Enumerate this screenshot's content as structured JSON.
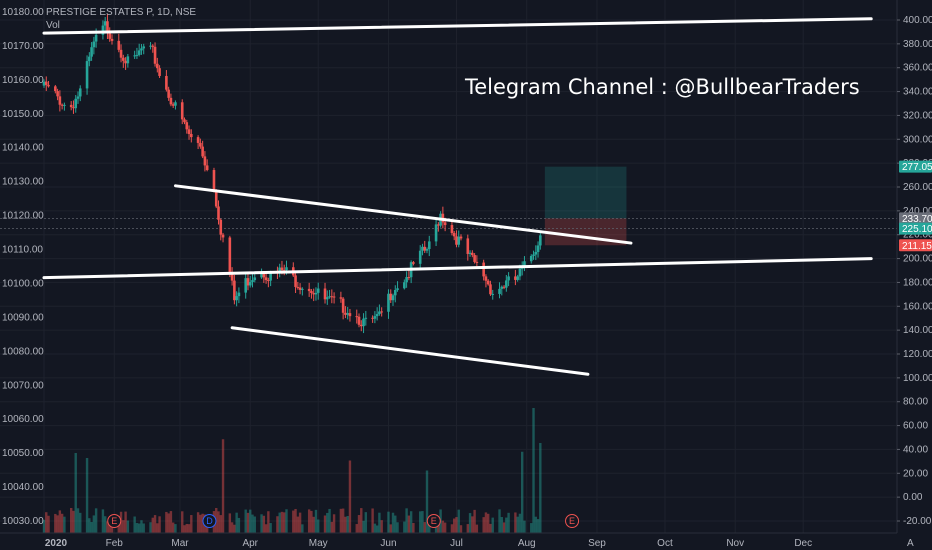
{
  "chart_data": {
    "type": "candlestick",
    "symbol_title": "PRESTIGE ESTATES P, 1D, NSE",
    "volume_label": "Vol",
    "watermark": "Telegram Channel : @BullbearTraders",
    "x_labels": [
      "2020",
      "Feb",
      "Mar",
      "Apr",
      "May",
      "Jun",
      "Jul",
      "Aug",
      "Sep",
      "Oct",
      "Nov",
      "Dec"
    ],
    "left_axis_labels": [
      "10180.00",
      "10170.00",
      "10160.00",
      "10150.00",
      "10140.00",
      "10130.00",
      "10120.00",
      "10110.00",
      "10100.00",
      "10090.00",
      "10080.00",
      "10070.00",
      "10060.00",
      "10050.00",
      "10040.00",
      "10030.00"
    ],
    "right_axis_labels": [
      "400.00",
      "380.00",
      "360.00",
      "340.00",
      "320.00",
      "300.00",
      "280.00",
      "260.00",
      "240.00",
      "220.00",
      "200.00",
      "180.00",
      "160.00",
      "140.00",
      "120.00",
      "100.00",
      "80.00",
      "60.00",
      "40.00",
      "20.00",
      "0.00",
      "-20.00"
    ],
    "price_tags": [
      {
        "label": "277.05",
        "value": 277.05,
        "color": "#26a69a"
      },
      {
        "label": "233.70",
        "value": 233.7,
        "color": "#6b6f7a"
      },
      {
        "label": "225.10",
        "value": 225.1,
        "color": "#26a69a"
      },
      {
        "label": "211.15",
        "value": 211.15,
        "color": "#ef5350"
      }
    ],
    "events": [
      {
        "letter": "E",
        "month": "Feb",
        "color": "#ef5350"
      },
      {
        "letter": "D",
        "month": "Mar",
        "color": "#2962ff"
      },
      {
        "letter": "E",
        "month": "Jun",
        "color": "#ef5350"
      },
      {
        "letter": "E",
        "month": "Aug",
        "color": "#ef5350"
      }
    ],
    "candle_color_up": "#26a69a",
    "candle_color_down": "#ef5350",
    "price_path": [
      [
        "2020-01-01",
        345
      ],
      [
        "2020-01-07",
        335
      ],
      [
        "2020-01-12",
        325
      ],
      [
        "2020-01-17",
        340
      ],
      [
        "2020-01-23",
        380
      ],
      [
        "2020-01-28",
        395
      ],
      [
        "2020-02-03",
        378
      ],
      [
        "2020-02-08",
        360
      ],
      [
        "2020-02-13",
        375
      ],
      [
        "2020-02-18",
        372
      ],
      [
        "2020-02-22",
        350
      ],
      [
        "2020-02-27",
        330
      ],
      [
        "2020-03-02",
        315
      ],
      [
        "2020-03-06",
        300
      ],
      [
        "2020-03-10",
        295
      ],
      [
        "2020-03-13",
        275
      ],
      [
        "2020-03-16",
        260
      ],
      [
        "2020-03-19",
        225
      ],
      [
        "2020-03-22",
        200
      ],
      [
        "2020-03-25",
        165
      ],
      [
        "2020-03-30",
        180
      ],
      [
        "2020-04-05",
        192
      ],
      [
        "2020-04-10",
        185
      ],
      [
        "2020-04-16",
        190
      ],
      [
        "2020-04-22",
        180
      ],
      [
        "2020-04-28",
        175
      ],
      [
        "2020-05-04",
        165
      ],
      [
        "2020-05-10",
        162
      ],
      [
        "2020-05-16",
        155
      ],
      [
        "2020-05-22",
        145
      ],
      [
        "2020-05-28",
        150
      ],
      [
        "2020-06-03",
        175
      ],
      [
        "2020-06-09",
        185
      ],
      [
        "2020-06-14",
        200
      ],
      [
        "2020-06-19",
        210
      ],
      [
        "2020-06-24",
        238
      ],
      [
        "2020-06-28",
        225
      ],
      [
        "2020-07-02",
        215
      ],
      [
        "2020-07-07",
        200
      ],
      [
        "2020-07-12",
        190
      ],
      [
        "2020-07-17",
        172
      ],
      [
        "2020-07-22",
        178
      ],
      [
        "2020-07-27",
        182
      ],
      [
        "2020-08-01",
        195
      ],
      [
        "2020-08-05",
        210
      ],
      [
        "2020-08-08",
        225
      ]
    ],
    "volume_peaks": [
      [
        "2020-01-15",
        64
      ],
      [
        "2020-01-20",
        60
      ],
      [
        "2020-03-17",
        20
      ],
      [
        "2020-03-20",
        75
      ],
      [
        "2020-05-15",
        58
      ],
      [
        "2020-06-14",
        90
      ],
      [
        "2020-06-18",
        50
      ],
      [
        "2020-07-18",
        38
      ],
      [
        "2020-07-30",
        65
      ],
      [
        "2020-08-04",
        100
      ],
      [
        "2020-08-07",
        72
      ]
    ],
    "trendlines": [
      {
        "from": [
          "2020-01-01",
          389
        ],
        "to": [
          "2020-12-31",
          401
        ]
      },
      {
        "from": [
          "2020-01-01",
          184
        ],
        "to": [
          "2020-12-31",
          200
        ]
      },
      {
        "from": [
          "2020-02-28",
          261
        ],
        "to": [
          "2020-09-16",
          213
        ]
      },
      {
        "from": [
          "2020-03-24",
          142
        ],
        "to": [
          "2020-08-28",
          103
        ]
      }
    ],
    "position": {
      "from": "2020-08-09",
      "to": "2020-09-14",
      "target": 277.05,
      "entry": 233.7,
      "stop": 211.15,
      "profit_color": "#26a69a",
      "loss_color": "#ef5350"
    },
    "dotted_levels": [
      233.7,
      225.1
    ],
    "x_range": [
      "2020-01-01",
      "2021-01-03"
    ],
    "y_price_range": [
      -25,
      405
    ],
    "grid": true
  }
}
